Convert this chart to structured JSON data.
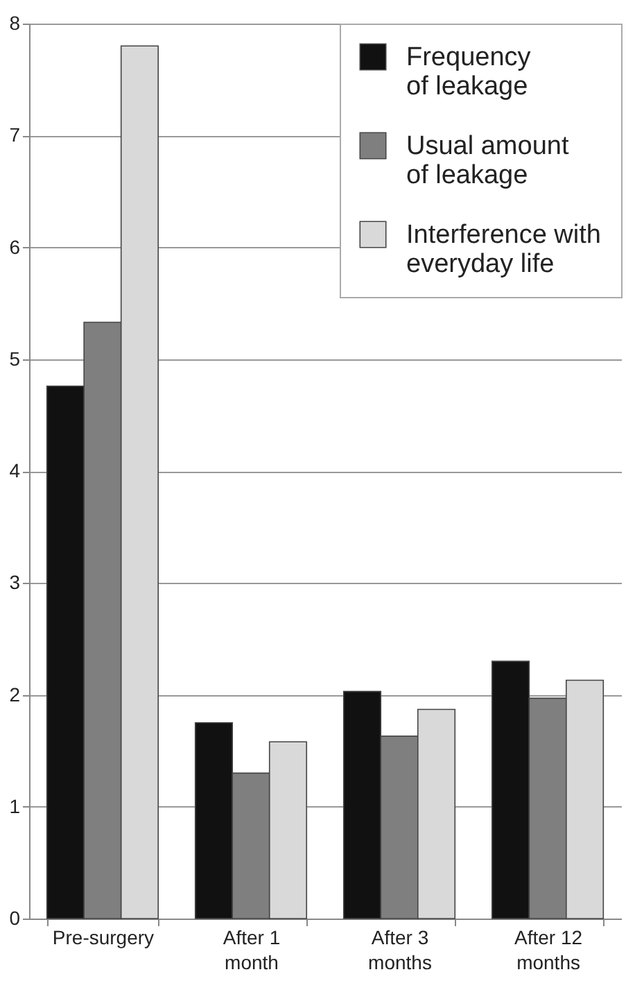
{
  "chart_data": {
    "type": "bar",
    "categories": [
      "Pre-surgery",
      "After 1 month",
      "After 3 months",
      "After 12 months"
    ],
    "series": [
      {
        "name": "Frequency of leakage",
        "color": "#111111",
        "values": [
          4.76,
          1.75,
          2.03,
          2.3
        ]
      },
      {
        "name": "Usual amount of leakage",
        "color": "#7f7f7f",
        "values": [
          5.33,
          1.3,
          1.63,
          1.97
        ]
      },
      {
        "name": "Interference with everyday life",
        "color": "#d9d9d9",
        "values": [
          7.8,
          1.58,
          1.87,
          2.13
        ]
      }
    ],
    "ylim": [
      0,
      8
    ],
    "yticks": [
      0,
      1,
      2,
      3,
      4,
      5,
      6,
      7,
      8
    ],
    "grid": "y",
    "legend": "top right"
  }
}
